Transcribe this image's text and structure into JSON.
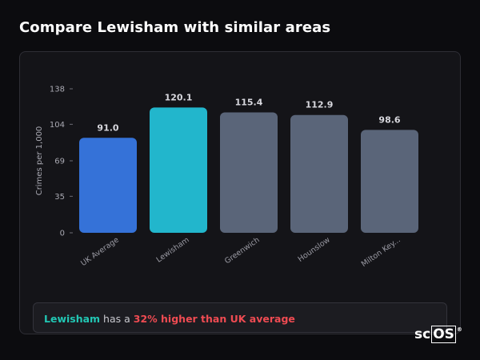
{
  "page": {
    "title": "Compare Lewisham with similar areas"
  },
  "chart_data": {
    "type": "bar",
    "ylabel": "Crimes per 1,000",
    "xlabel": "",
    "ylim": [
      0,
      138
    ],
    "yticks": [
      0,
      35,
      69,
      104,
      138
    ],
    "categories": [
      "UK Average",
      "Lewisham",
      "Greenwich",
      "Hounslow",
      "Milton Key..."
    ],
    "values": [
      91.0,
      120.1,
      115.4,
      112.9,
      98.6
    ],
    "value_labels": [
      "91.0",
      "120.1",
      "115.4",
      "112.9",
      "98.6"
    ],
    "bar_colors": [
      "#3572d8",
      "#22b6cc",
      "#5a6579",
      "#5a6579",
      "#5a6579"
    ],
    "grid": false
  },
  "insight": {
    "area": "Lewisham",
    "pre": " has a ",
    "highlight": "32% higher than UK average"
  },
  "logo": {
    "prefix": "sc",
    "boxed": "OS",
    "mark": "®"
  }
}
